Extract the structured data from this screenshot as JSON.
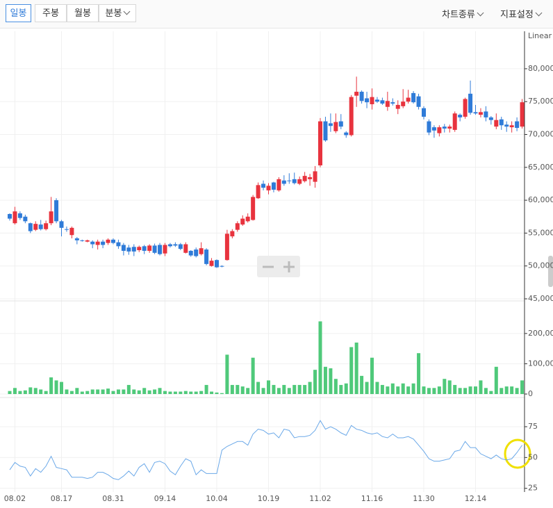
{
  "toolbar": {
    "tabs": [
      "일봉",
      "주봉",
      "월봉",
      "분봉"
    ],
    "right": [
      "차트종류",
      "지표설정"
    ]
  },
  "chart_data": [
    {
      "type": "candlestick",
      "scale": "Linear",
      "grid": true,
      "up_color": "#e8333e",
      "down_color": "#2f7bd8",
      "categories": [
        null,
        "08.02",
        null,
        null,
        null,
        null,
        null,
        null,
        null,
        null,
        "08.17",
        null,
        null,
        null,
        null,
        null,
        null,
        null,
        null,
        null,
        "08.31",
        null,
        null,
        null,
        null,
        null,
        null,
        null,
        null,
        null,
        "09.14",
        null,
        null,
        null,
        null,
        null,
        null,
        null,
        null,
        null,
        "10.04",
        null,
        null,
        null,
        null,
        null,
        null,
        null,
        null,
        null,
        "10.19",
        null,
        null,
        null,
        null,
        null,
        null,
        null,
        null,
        null,
        "11.02",
        null,
        null,
        null,
        null,
        null,
        null,
        null,
        null,
        null,
        "11.16",
        null,
        null,
        null,
        null,
        null,
        null,
        null,
        null,
        null,
        "11.30",
        null,
        null,
        null,
        null,
        null,
        null,
        null,
        null,
        null,
        "12.14",
        null,
        null,
        null,
        null,
        null,
        null,
        null,
        null,
        null
      ],
      "open": [
        57900,
        56500,
        58000,
        57500,
        56500,
        55500,
        56300,
        55600,
        56500,
        60000,
        56800,
        55600,
        54700,
        54200,
        53900,
        53700,
        53700,
        53200,
        53700,
        53500,
        54000,
        53600,
        53200,
        52800,
        52900,
        52400,
        53000,
        52300,
        53100,
        53200,
        51900,
        53300,
        53300,
        53300,
        52000,
        52300,
        52500,
        51800,
        52500,
        50000,
        50900,
        50000,
        50900,
        54500,
        55500,
        56300,
        56800,
        57000,
        60300,
        62500,
        61500,
        62700,
        61500,
        63000,
        63000,
        63200,
        62500,
        62900,
        63200,
        62800,
        65300,
        72000,
        71700,
        70500,
        72000,
        70300,
        69900,
        75900,
        76500,
        75500,
        74600,
        75300,
        75200,
        74200,
        74900,
        73900,
        74300,
        75000,
        76300,
        75800,
        74000,
        72000,
        71100,
        70200,
        71200,
        70900,
        70700,
        73000,
        72700,
        76200,
        73400,
        73000,
        73500,
        72600,
        71200,
        72300,
        71500,
        71100,
        72000,
        71200
      ],
      "high": [
        58000,
        59000,
        58300,
        57800,
        56600,
        56800,
        57000,
        56900,
        60500,
        60300,
        57000,
        56000,
        56000,
        54400,
        54000,
        54000,
        53900,
        54000,
        54000,
        54200,
        54200,
        54000,
        53500,
        53200,
        53300,
        53100,
        53200,
        53300,
        53400,
        53500,
        53500,
        53500,
        53600,
        53500,
        53600,
        52400,
        52800,
        53600,
        52700,
        51200,
        51000,
        50100,
        55500,
        55600,
        56800,
        57700,
        58000,
        60800,
        62700,
        63000,
        62600,
        62800,
        63500,
        63800,
        64100,
        64200,
        63600,
        64300,
        64000,
        65200,
        72500,
        72700,
        73200,
        73200,
        73100,
        70500,
        76000,
        78800,
        76700,
        76500,
        77000,
        75700,
        75600,
        76500,
        75500,
        75200,
        76900,
        76800,
        76600,
        76200,
        74300,
        72300,
        71400,
        71400,
        71600,
        71500,
        73500,
        73200,
        75600,
        78200,
        74500,
        74000,
        74300,
        72800,
        73200,
        72700,
        72000,
        72000,
        72600,
        75400
      ],
      "low": [
        56900,
        56300,
        57000,
        56500,
        55000,
        55300,
        55400,
        55400,
        56200,
        56500,
        54500,
        55200,
        54200,
        53300,
        53700,
        53600,
        52700,
        52500,
        52700,
        53200,
        53300,
        52600,
        51600,
        51700,
        51500,
        52100,
        51800,
        52000,
        51800,
        51600,
        51500,
        52800,
        52900,
        52400,
        51900,
        51400,
        51300,
        51600,
        50100,
        49900,
        49700,
        49800,
        50800,
        54200,
        55200,
        56100,
        56600,
        56900,
        60200,
        61500,
        60900,
        61200,
        61300,
        62200,
        62500,
        62400,
        62300,
        62700,
        62200,
        61900,
        65000,
        68900,
        70400,
        70200,
        70800,
        69500,
        69700,
        74200,
        74700,
        74000,
        73800,
        74800,
        74500,
        73600,
        74400,
        73100,
        74000,
        74700,
        74700,
        73800,
        72300,
        69900,
        69500,
        69700,
        70300,
        70300,
        70400,
        72000,
        72400,
        73000,
        73000,
        72600,
        72000,
        71500,
        70800,
        70700,
        70400,
        70300,
        70500,
        70900
      ],
      "close": [
        57200,
        58300,
        57300,
        56800,
        55300,
        56400,
        55600,
        56500,
        58300,
        56800,
        55800,
        55500,
        55800,
        53900,
        53800,
        53900,
        53300,
        53700,
        53200,
        54000,
        53500,
        53000,
        52300,
        52200,
        52200,
        52900,
        52300,
        53100,
        52000,
        51800,
        53200,
        53000,
        53100,
        52600,
        53300,
        51600,
        51500,
        52700,
        50300,
        50800,
        49800,
        49900,
        54900,
        55300,
        56500,
        57200,
        57500,
        60500,
        62300,
        61900,
        62200,
        61600,
        63200,
        62500,
        62900,
        62600,
        63200,
        63700,
        63500,
        64400,
        72000,
        69100,
        71300,
        71900,
        71200,
        69900,
        75700,
        76500,
        75100,
        74900,
        75700,
        75000,
        74700,
        75100,
        74700,
        74500,
        75000,
        75600,
        74900,
        74200,
        72700,
        70300,
        70600,
        71100,
        70900,
        71200,
        73200,
        72600,
        75400,
        73300,
        73200,
        73400,
        72600,
        72200,
        72200,
        71400,
        71200,
        71400,
        71000,
        74900
      ],
      "ylim": [
        45000,
        85700
      ],
      "yticks": [
        {
          "value": 45000,
          "label": "45,000"
        },
        {
          "value": 50000,
          "label": "50,000"
        },
        {
          "value": 55000,
          "label": "55,000"
        },
        {
          "value": 60000,
          "label": "60,000"
        },
        {
          "value": 65000,
          "label": "65,000"
        },
        {
          "value": 70000,
          "label": "70,000"
        },
        {
          "value": 75000,
          "label": "75,000"
        },
        {
          "value": 80000,
          "label": "80,000"
        }
      ]
    },
    {
      "type": "bar",
      "color": "#4fc97a",
      "grid": true,
      "values": [
        10000,
        20000,
        10000,
        12000,
        22000,
        20000,
        15000,
        10000,
        55000,
        45000,
        40000,
        15000,
        10000,
        20000,
        8000,
        10000,
        15000,
        15000,
        15000,
        18000,
        10000,
        15000,
        15000,
        30000,
        15000,
        12000,
        20000,
        12000,
        15000,
        20000,
        10000,
        8000,
        8000,
        8000,
        10000,
        8000,
        8000,
        10000,
        30000,
        8000,
        5000,
        3000,
        130000,
        30000,
        30000,
        25000,
        20000,
        120000,
        40000,
        20000,
        45000,
        30000,
        20000,
        30000,
        20000,
        30000,
        30000,
        30000,
        40000,
        80000,
        240000,
        90000,
        85000,
        50000,
        30000,
        35000,
        155000,
        170000,
        60000,
        40000,
        120000,
        40000,
        30000,
        25000,
        35000,
        25000,
        35000,
        25000,
        35000,
        135000,
        25000,
        20000,
        20000,
        25000,
        50000,
        45000,
        30000,
        20000,
        20000,
        25000,
        25000,
        45000,
        20000,
        10000,
        90000,
        20000,
        25000,
        25000,
        20000,
        45000
      ],
      "ylim": [
        0,
        303000
      ],
      "yticks": [
        0,
        {
          "value": 100000,
          "label": "100,000"
        },
        {
          "value": 200000,
          "label": "200,000"
        }
      ]
    },
    {
      "type": "line",
      "color": "#6aa8e8",
      "grid": true,
      "values": [
        40,
        46,
        43,
        42,
        35,
        41,
        38,
        43,
        51,
        42,
        41,
        40,
        34,
        34,
        34,
        33,
        34,
        38,
        38,
        36,
        33,
        32,
        35,
        39,
        35,
        42,
        45,
        38,
        46,
        47,
        45,
        39,
        36,
        43,
        49,
        47,
        36,
        40,
        37,
        37,
        37,
        56,
        59,
        61,
        63,
        63,
        60,
        69,
        73,
        72,
        69,
        70,
        66,
        73,
        72,
        66,
        67,
        67,
        68,
        72,
        80,
        73,
        75,
        73,
        70,
        68,
        76,
        73,
        72,
        70,
        69,
        70,
        67,
        66,
        69,
        66,
        66,
        67,
        65,
        60,
        55,
        49,
        47,
        47,
        48,
        49,
        55,
        56,
        63,
        58,
        58,
        53,
        51,
        49,
        52,
        49,
        48,
        49,
        54,
        60
      ],
      "ylim": [
        22,
        97
      ],
      "yticks": [
        25,
        50,
        75
      ]
    }
  ]
}
